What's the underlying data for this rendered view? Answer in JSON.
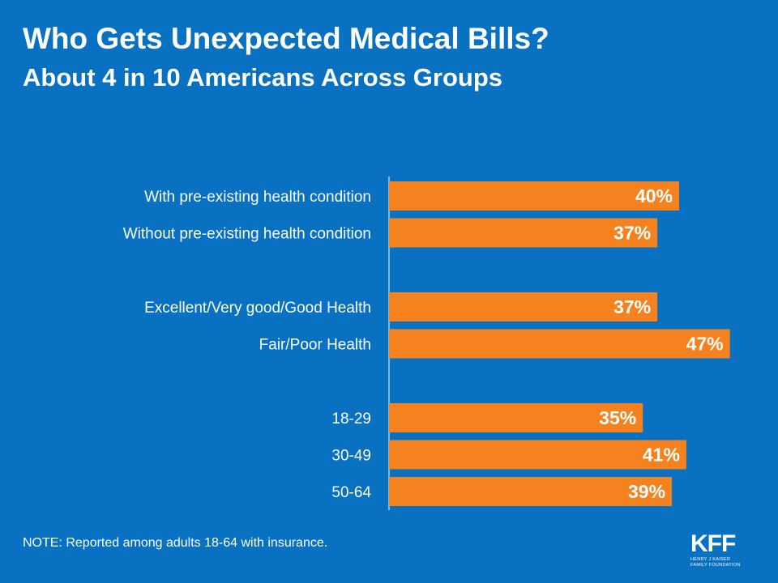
{
  "chart_data": {
    "type": "bar",
    "orientation": "horizontal",
    "title": "Who Gets Unexpected Medical Bills?",
    "subtitle": "About 4 in 10 Americans Across Groups",
    "groups": [
      {
        "categories": [
          "With pre-existing health condition",
          "Without pre-existing health condition"
        ],
        "values": [
          40,
          37
        ],
        "labels": [
          "40%",
          "37%"
        ]
      },
      {
        "categories": [
          "Excellent/Very good/Good Health",
          "Fair/Poor Health"
        ],
        "values": [
          37,
          47
        ],
        "labels": [
          "37%",
          "47%"
        ]
      },
      {
        "categories": [
          "18-29",
          "30-49",
          "50-64"
        ],
        "values": [
          35,
          41,
          39
        ],
        "labels": [
          "35%",
          "41%",
          "39%"
        ]
      }
    ],
    "xlim": [
      0,
      100
    ],
    "bar_color": "#f5821f",
    "axis_color": "#ffffff"
  },
  "note": "NOTE: Reported among adults 18-64 with insurance.",
  "logo": {
    "mark": "KFF",
    "sub_line1": "HENRY J KAISER",
    "sub_line2": "FAMILY FOUNDATION"
  },
  "colors": {
    "background": "#0871c1",
    "bar": "#f5821f",
    "text": "#ffffff"
  }
}
